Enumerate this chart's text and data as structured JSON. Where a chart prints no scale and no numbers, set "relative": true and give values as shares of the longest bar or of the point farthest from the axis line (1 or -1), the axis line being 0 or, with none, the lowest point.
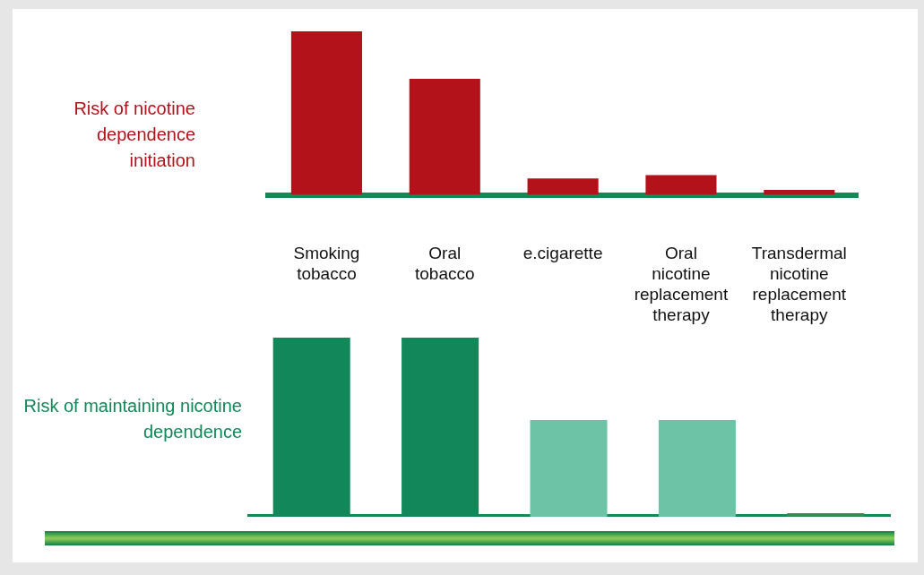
{
  "chart_data": [
    {
      "type": "bar",
      "ylabel": "Risk of nicotine dependence initiation",
      "relative": true,
      "categories": [
        "Smoking tobacco",
        "Oral tobacco",
        "e.cigarette",
        "Oral nicotine replacement therapy",
        "Transdermal nicotine replacement therapy"
      ],
      "values": [
        1,
        0.71,
        0.1,
        0.12,
        0.03
      ],
      "color": "#b3121b",
      "grid": false,
      "legend": false
    },
    {
      "type": "bar",
      "ylabel": "Risk of maintaining nicotine dependence",
      "relative": true,
      "categories": [
        null,
        null,
        null,
        null,
        null
      ],
      "values": [
        1,
        1,
        0.54,
        0.54,
        0.02
      ],
      "colors": [
        "#12875a",
        "#12875a",
        "#6cc3a6",
        "#6cc3a6",
        "#2f8f4e"
      ],
      "grid": false,
      "legend": false,
      "tick_labels": false
    }
  ]
}
